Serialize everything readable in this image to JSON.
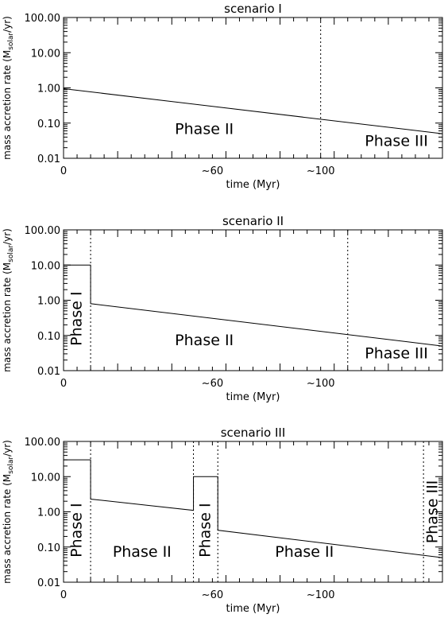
{
  "chart_data": [
    {
      "type": "line",
      "title": "scenario I",
      "xlabel": "time (Myr)",
      "ylabel": "mass accretion rate (M",
      "ylabel_sub": "solar",
      "ylabel_tail": "/yr)",
      "xlim": [
        0,
        140
      ],
      "ylim": [
        0.01,
        100
      ],
      "yscale": "log",
      "x_tick_labels": [
        {
          "x": 0,
          "label": "0"
        },
        {
          "x": 55,
          "label": "~60"
        },
        {
          "x": 95,
          "label": "~100"
        }
      ],
      "y_tick_labels": [
        {
          "y": 100,
          "label": "100.00"
        },
        {
          "y": 10,
          "label": "10.00"
        },
        {
          "y": 1,
          "label": "1.00"
        },
        {
          "y": 0.1,
          "label": "0.10"
        },
        {
          "y": 0.01,
          "label": "0.01"
        }
      ],
      "series": [
        {
          "points": [
            [
              0,
              0.95
            ],
            [
              140,
              0.05
            ]
          ]
        }
      ],
      "vlines": [
        95
      ],
      "annotations": [
        {
          "text": "Phase II",
          "x": 52,
          "y": 0.065,
          "rotate": false
        },
        {
          "text": "Phase III",
          "x": 123,
          "y": 0.03,
          "rotate": false
        }
      ]
    },
    {
      "type": "line",
      "title": "scenario II",
      "xlabel": "time (Myr)",
      "ylabel": "mass accretion rate (M",
      "ylabel_sub": "solar",
      "ylabel_tail": "/yr)",
      "xlim": [
        0,
        140
      ],
      "ylim": [
        0.01,
        100
      ],
      "yscale": "log",
      "x_tick_labels": [
        {
          "x": 0,
          "label": "0"
        },
        {
          "x": 55,
          "label": "~60"
        },
        {
          "x": 95,
          "label": "~100"
        }
      ],
      "y_tick_labels": [
        {
          "y": 100,
          "label": "100.00"
        },
        {
          "y": 10,
          "label": "10.00"
        },
        {
          "y": 1,
          "label": "1.00"
        },
        {
          "y": 0.1,
          "label": "0.10"
        },
        {
          "y": 0.01,
          "label": "0.01"
        }
      ],
      "series": [
        {
          "points": [
            [
              0,
              10
            ],
            [
              10,
              10
            ],
            [
              10,
              0.8
            ],
            [
              140,
              0.05
            ]
          ]
        }
      ],
      "vlines": [
        10,
        105
      ],
      "annotations": [
        {
          "text": "Phase I",
          "x": 5,
          "y": 0.3,
          "rotate": true
        },
        {
          "text": "Phase II",
          "x": 52,
          "y": 0.07,
          "rotate": false
        },
        {
          "text": "Phase III",
          "x": 123,
          "y": 0.03,
          "rotate": false
        }
      ]
    },
    {
      "type": "line",
      "title": "scenario III",
      "xlabel": "time (Myr)",
      "ylabel": "mass accretion rate (M",
      "ylabel_sub": "solar",
      "ylabel_tail": "/yr)",
      "xlim": [
        0,
        140
      ],
      "ylim": [
        0.01,
        100
      ],
      "yscale": "log",
      "x_tick_labels": [
        {
          "x": 0,
          "label": "0"
        },
        {
          "x": 55,
          "label": "~60"
        },
        {
          "x": 95,
          "label": "~100"
        }
      ],
      "y_tick_labels": [
        {
          "y": 100,
          "label": "100.00"
        },
        {
          "y": 10,
          "label": "10.00"
        },
        {
          "y": 1,
          "label": "1.00"
        },
        {
          "y": 0.1,
          "label": "0.10"
        },
        {
          "y": 0.01,
          "label": "0.01"
        }
      ],
      "series": [
        {
          "points": [
            [
              0,
              30
            ],
            [
              10,
              30
            ],
            [
              10,
              2.3
            ],
            [
              48,
              1.1
            ],
            [
              48,
              10
            ],
            [
              57,
              10
            ],
            [
              57,
              0.3
            ],
            [
              140,
              0.05
            ]
          ]
        }
      ],
      "vlines": [
        10,
        48,
        57,
        133
      ],
      "annotations": [
        {
          "text": "Phase I",
          "x": 5,
          "y": 0.3,
          "rotate": true
        },
        {
          "text": "Phase II",
          "x": 29,
          "y": 0.07,
          "rotate": false
        },
        {
          "text": "Phase I",
          "x": 52.5,
          "y": 0.3,
          "rotate": true
        },
        {
          "text": "Phase II",
          "x": 89,
          "y": 0.07,
          "rotate": false
        },
        {
          "text": "Phase III",
          "x": 136.5,
          "y": 1.0,
          "rotate": true
        }
      ]
    }
  ]
}
